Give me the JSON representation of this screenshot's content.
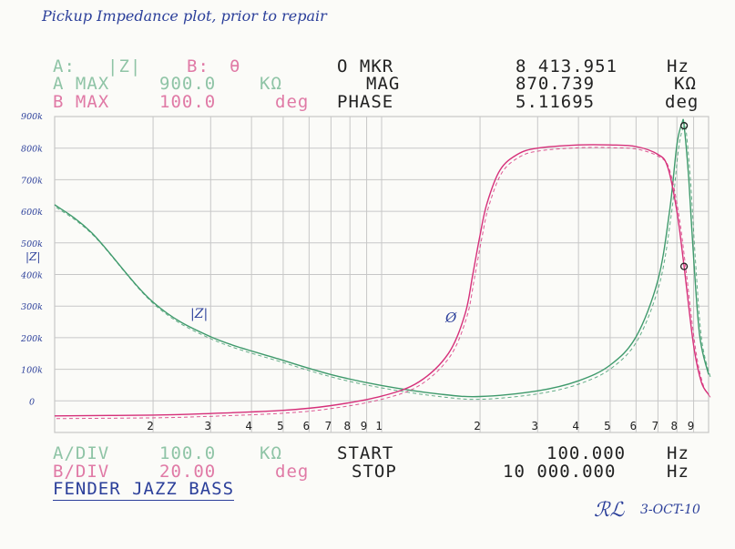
{
  "annotations": {
    "title": "Pickup Impedance plot, prior to repair",
    "instrument": "FENDER JAZZ BASS",
    "signature": "ℛℒ",
    "date": "3-OCT-10",
    "trace_a_label": "|Z|",
    "trace_b_label": "Ø"
  },
  "header": {
    "a_label": "A:",
    "a_value": "|Z|",
    "b_label": "B:",
    "b_value": "θ",
    "a_max_label": "A MAX",
    "a_max_value": "900.0",
    "a_max_unit": "KΩ",
    "b_max_label": "B MAX",
    "b_max_value": "100.0",
    "b_max_unit": "deg",
    "mkr_label": "O MKR",
    "mkr_value": "8 413.951",
    "mkr_unit": "Hz",
    "mag_label": "MAG",
    "mag_value": "870.739",
    "mag_unit": "KΩ",
    "phase_label": "PHASE",
    "phase_value": "5.11695",
    "phase_unit": "deg"
  },
  "footer": {
    "a_div_label": "A/DIV",
    "a_div_value": "100.0",
    "a_div_unit": "KΩ",
    "b_div_label": "B/DIV",
    "b_div_value": "20.00",
    "b_div_unit": "deg",
    "start_label": "START",
    "start_value": "100.000",
    "start_unit": "Hz",
    "stop_label": "STOP",
    "stop_value": "10 000.000",
    "stop_unit": "Hz"
  },
  "colors": {
    "trace_a": "#3f9a6c",
    "trace_b": "#d6307a",
    "grid": "#c7c7c7",
    "ink": "#2b3f9a"
  },
  "chart_data": {
    "type": "line",
    "x_scale": "log",
    "xlim": [
      100,
      10000
    ],
    "x_tick_labels": [
      "2",
      "3",
      "4",
      "5",
      "6",
      "7",
      "8",
      "9",
      "1",
      "2",
      "3",
      "4",
      "5",
      "6",
      "7",
      "8",
      "9"
    ],
    "y_left_lim": [
      -100,
      900
    ],
    "y_left_tick_labels": [
      "900k",
      "800k",
      "700k",
      "600k",
      "500k",
      "400k",
      "300k",
      "200k",
      "100k",
      "0"
    ],
    "y_left_label": "|Z|",
    "series": [
      {
        "name": "|Z|",
        "unit": "kΩ",
        "x": [
          100,
          130,
          200,
          300,
          500,
          700,
          1000,
          1500,
          2000,
          3000,
          4000,
          5000,
          6000,
          7000,
          7600,
          8000,
          8300,
          8414,
          8700,
          9000,
          9400,
          10000
        ],
        "y": [
          620,
          530,
          310,
          200,
          125,
          80,
          45,
          18,
          10,
          28,
          60,
          110,
          200,
          380,
          600,
          810,
          880,
          871,
          700,
          450,
          200,
          80
        ]
      },
      {
        "name": "Ø",
        "unit": "deg",
        "x": [
          100,
          200,
          300,
          500,
          700,
          1000,
          1300,
          1600,
          1800,
          1900,
          2000,
          2100,
          2300,
          2600,
          3000,
          4000,
          5000,
          6000,
          7000,
          7500,
          8000,
          8414,
          9000,
          9500,
          10000
        ],
        "y": [
          -89.5,
          -89,
          -88,
          -86,
          -83,
          -77,
          -68,
          -50,
          -25,
          0,
          25,
          45,
          66,
          76,
          80,
          82,
          82,
          81,
          76,
          68,
          40,
          5.12,
          -45,
          -68,
          -76
        ]
      }
    ],
    "markers": [
      {
        "trace": "|Z|",
        "x": 8413.951,
        "y": 870.739
      },
      {
        "trace": "Ø",
        "x": 8413.951,
        "y": 5.11695
      }
    ]
  }
}
